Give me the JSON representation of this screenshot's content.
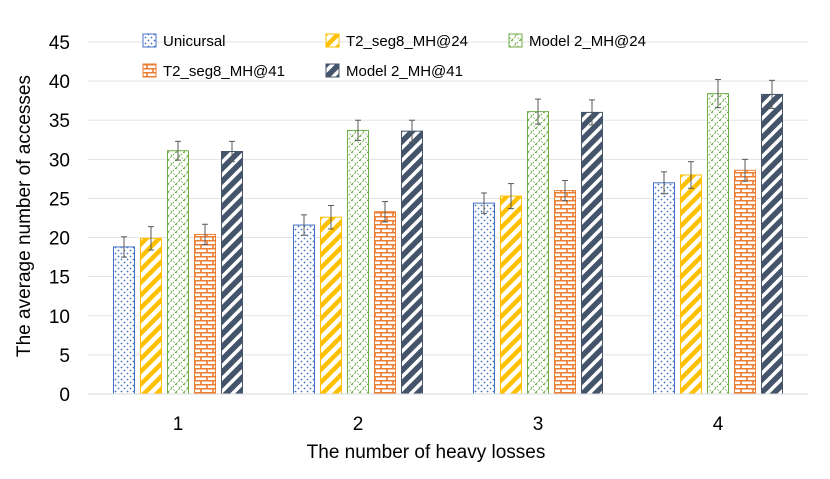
{
  "chart_data": {
    "type": "bar",
    "title": "",
    "xlabel": "The number of heavy losses",
    "ylabel": "The average number of accesses",
    "categories": [
      "1",
      "2",
      "3",
      "4"
    ],
    "ylim": [
      0,
      45
    ],
    "yticks": [
      "0",
      "5",
      "10",
      "15",
      "20",
      "25",
      "30",
      "35",
      "40",
      "45"
    ],
    "grid": true,
    "legend_position": "top",
    "series": [
      {
        "name": "Unicursal",
        "values": [
          18.8,
          21.6,
          24.4,
          27.0
        ],
        "errors": [
          1.3,
          1.3,
          1.3,
          1.4
        ],
        "color": "#4472C4",
        "pattern": "dots"
      },
      {
        "name": "T2_seg8_MH@24",
        "values": [
          19.9,
          22.6,
          25.3,
          28.0
        ],
        "errors": [
          1.5,
          1.5,
          1.6,
          1.7
        ],
        "color": "#FFC000",
        "pattern": "diagonal-stripes"
      },
      {
        "name": "Model 2_MH@24",
        "values": [
          31.1,
          33.7,
          36.1,
          38.4
        ],
        "errors": [
          1.2,
          1.3,
          1.6,
          1.8
        ],
        "color": "#70AD47",
        "pattern": "zigzag"
      },
      {
        "name": "T2_seg8_MH@41",
        "values": [
          20.4,
          23.3,
          26.0,
          28.6
        ],
        "errors": [
          1.3,
          1.3,
          1.3,
          1.4
        ],
        "color": "#ED7D31",
        "pattern": "brick"
      },
      {
        "name": "Model 2_MH@41",
        "values": [
          31.0,
          33.6,
          36.0,
          38.3
        ],
        "errors": [
          1.3,
          1.4,
          1.6,
          1.8
        ],
        "color": "#44546A",
        "pattern": "wide-diagonal"
      }
    ]
  }
}
